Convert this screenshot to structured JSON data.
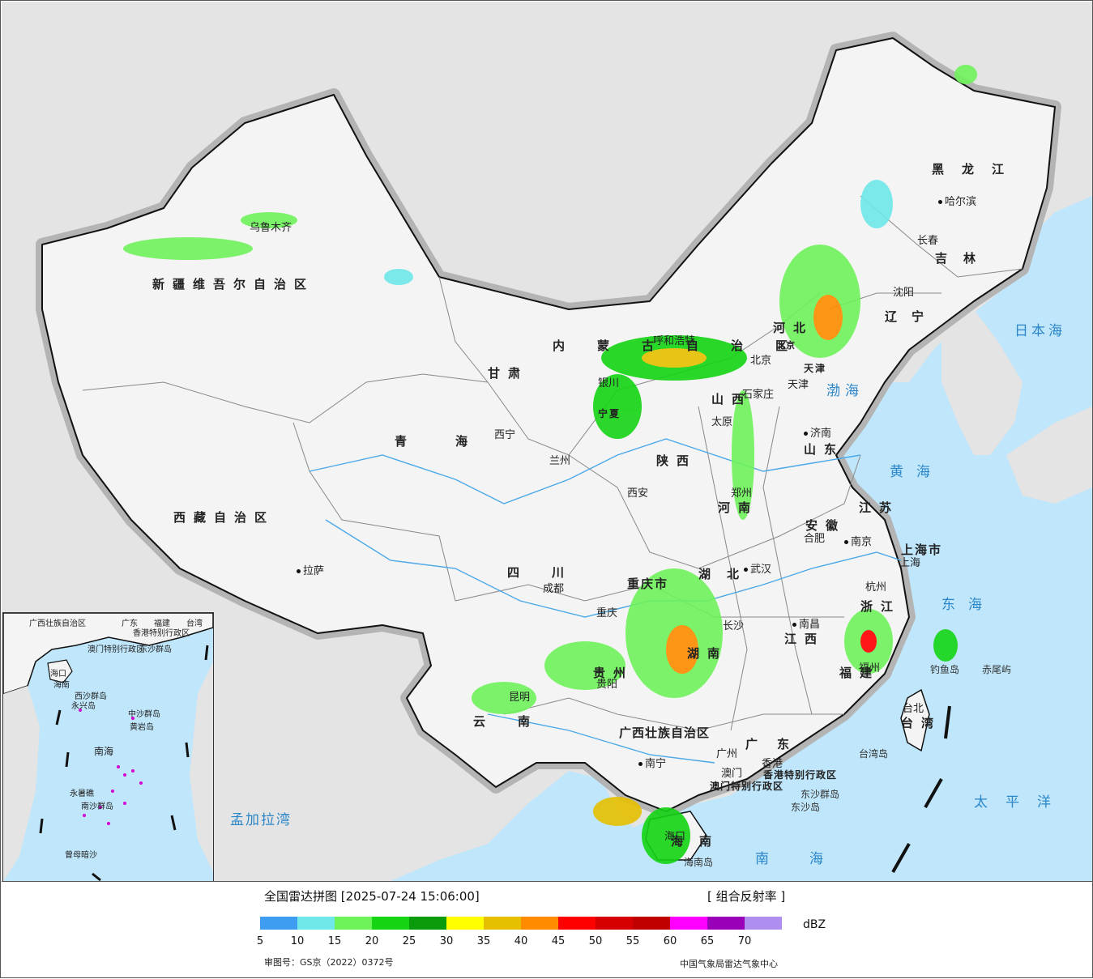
{
  "colors": {
    "sea": "#bfe6fa",
    "land_foreign": "#e4e4e4",
    "land_china": "#f4f4f4",
    "border": "#111111",
    "border_halo": "#b4b4b4",
    "river": "#4aa8e8",
    "province_line": "#888888"
  },
  "map": {
    "provinces": [
      {
        "name": "新疆维吾尔自治区"
      },
      {
        "name": "西藏自治区"
      },
      {
        "name": "青海"
      },
      {
        "name": "甘肃"
      },
      {
        "name": "内蒙古自治区"
      },
      {
        "name": "黑龙江"
      },
      {
        "name": "吉林"
      },
      {
        "name": "辽宁"
      },
      {
        "name": "河北"
      },
      {
        "name": "山西"
      },
      {
        "name": "山东"
      },
      {
        "name": "陕西"
      },
      {
        "name": "河南"
      },
      {
        "name": "江苏"
      },
      {
        "name": "安徽"
      },
      {
        "name": "上海市"
      },
      {
        "name": "浙江"
      },
      {
        "name": "四川"
      },
      {
        "name": "重庆市"
      },
      {
        "name": "湖北"
      },
      {
        "name": "湖南"
      },
      {
        "name": "江西"
      },
      {
        "name": "福建"
      },
      {
        "name": "贵州"
      },
      {
        "name": "云南"
      },
      {
        "name": "广西壮族自治区"
      },
      {
        "name": "广东"
      },
      {
        "name": "海南"
      },
      {
        "name": "台湾"
      },
      {
        "name": "宁夏"
      },
      {
        "name": "天津"
      },
      {
        "name": "香港特别行政区"
      },
      {
        "name": "澳门特别行政区"
      },
      {
        "name": "北京"
      }
    ],
    "cities": [
      {
        "name": "乌鲁木齐"
      },
      {
        "name": "拉萨"
      },
      {
        "name": "西宁"
      },
      {
        "name": "兰州"
      },
      {
        "name": "银川"
      },
      {
        "name": "呼和浩特"
      },
      {
        "name": "哈尔滨"
      },
      {
        "name": "长春"
      },
      {
        "name": "沈阳"
      },
      {
        "name": "北京"
      },
      {
        "name": "天津"
      },
      {
        "name": "石家庄"
      },
      {
        "name": "太原"
      },
      {
        "name": "济南"
      },
      {
        "name": "郑州"
      },
      {
        "name": "西安"
      },
      {
        "name": "南京"
      },
      {
        "name": "合肥"
      },
      {
        "name": "上海"
      },
      {
        "name": "杭州"
      },
      {
        "name": "武汉"
      },
      {
        "name": "成都"
      },
      {
        "name": "重庆"
      },
      {
        "name": "长沙"
      },
      {
        "name": "南昌"
      },
      {
        "name": "福州"
      },
      {
        "name": "台北"
      },
      {
        "name": "贵阳"
      },
      {
        "name": "昆明"
      },
      {
        "name": "南宁"
      },
      {
        "name": "广州"
      },
      {
        "name": "香港"
      },
      {
        "name": "澳门"
      },
      {
        "name": "海口"
      }
    ],
    "seas": [
      {
        "name": "渤海"
      },
      {
        "name": "黄海"
      },
      {
        "name": "东海"
      },
      {
        "name": "南海"
      },
      {
        "name": "太平洋"
      },
      {
        "name": "日本海"
      },
      {
        "name": "孟加拉湾"
      }
    ],
    "islands": [
      {
        "name": "钓鱼岛"
      },
      {
        "name": "赤尾屿"
      },
      {
        "name": "台湾岛"
      },
      {
        "name": "东沙群岛"
      },
      {
        "name": "东沙岛"
      },
      {
        "name": "海南岛"
      }
    ]
  },
  "inset": {
    "labels": [
      {
        "name": "广西壮族自治区"
      },
      {
        "name": "广东"
      },
      {
        "name": "福建"
      },
      {
        "name": "台湾"
      },
      {
        "name": "香港特别行政区"
      },
      {
        "name": "澳门特别行政区"
      },
      {
        "name": "东沙群岛"
      },
      {
        "name": "海口"
      },
      {
        "name": "海南"
      },
      {
        "name": "西沙群岛"
      },
      {
        "name": "永兴岛"
      },
      {
        "name": "中沙群岛"
      },
      {
        "name": "黄岩岛"
      },
      {
        "name": "南海"
      },
      {
        "name": "永暑礁"
      },
      {
        "name": "南沙群岛"
      },
      {
        "name": "曾母暗沙"
      }
    ]
  },
  "legend": {
    "title": "全国雷达拼图 [2025-07-24 15:06:00]",
    "product": "[ 组合反射率 ]",
    "unit": "dBZ",
    "swatches": [
      {
        "color": "#3e9df0"
      },
      {
        "color": "#6ee8e8"
      },
      {
        "color": "#6ef25a"
      },
      {
        "color": "#14d414"
      },
      {
        "color": "#0a9b0a"
      },
      {
        "color": "#ffff00"
      },
      {
        "color": "#e6c000"
      },
      {
        "color": "#ff8c00"
      },
      {
        "color": "#ff0000"
      },
      {
        "color": "#d60000"
      },
      {
        "color": "#c00000"
      },
      {
        "color": "#ff00ff"
      },
      {
        "color": "#9a00b8"
      },
      {
        "color": "#ae8ef0"
      }
    ],
    "ticks": [
      "5",
      "10",
      "15",
      "20",
      "25",
      "30",
      "35",
      "40",
      "45",
      "50",
      "55",
      "60",
      "65",
      "70"
    ]
  },
  "footer": {
    "approval": "审图号：GS京（2022）0372号",
    "agency": "中国气象局雷达气象中心"
  }
}
